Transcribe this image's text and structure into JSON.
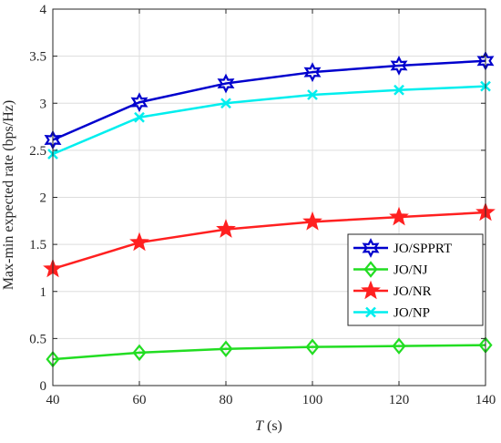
{
  "chart_data": {
    "type": "line",
    "xlabel_italic": "T",
    "xlabel_unit": " (s)",
    "ylabel": "Max-min expected rate (bps/Hz)",
    "x": [
      40,
      60,
      80,
      100,
      120,
      140
    ],
    "xlim": [
      40,
      140
    ],
    "ylim": [
      0,
      4
    ],
    "xticks": [
      40,
      60,
      80,
      100,
      120,
      140
    ],
    "yticks": [
      0,
      0.5,
      1,
      1.5,
      2,
      2.5,
      3,
      3.5,
      4
    ],
    "xtick_labels": [
      "40",
      "60",
      "80",
      "100",
      "120",
      "140"
    ],
    "ytick_labels": [
      "0",
      "0.5",
      "1",
      "1.5",
      "2",
      "2.5",
      "3",
      "3.5",
      "4"
    ],
    "grid": true,
    "legend_position": "center-right",
    "series": [
      {
        "name": "JO/SPPRT",
        "color": "#0000CD",
        "marker": "hexagram",
        "values": [
          2.61,
          3.01,
          3.21,
          3.33,
          3.4,
          3.45
        ]
      },
      {
        "name": "JO/NJ",
        "color": "#22DD22",
        "marker": "diamond",
        "values": [
          0.28,
          0.35,
          0.39,
          0.41,
          0.42,
          0.43
        ]
      },
      {
        "name": "JO/NR",
        "color": "#FF2020",
        "marker": "pentagram",
        "values": [
          1.24,
          1.52,
          1.66,
          1.74,
          1.79,
          1.84
        ]
      },
      {
        "name": "JO/NP",
        "color": "#00EEEE",
        "marker": "x",
        "values": [
          2.46,
          2.85,
          3.0,
          3.09,
          3.14,
          3.18
        ]
      }
    ]
  }
}
